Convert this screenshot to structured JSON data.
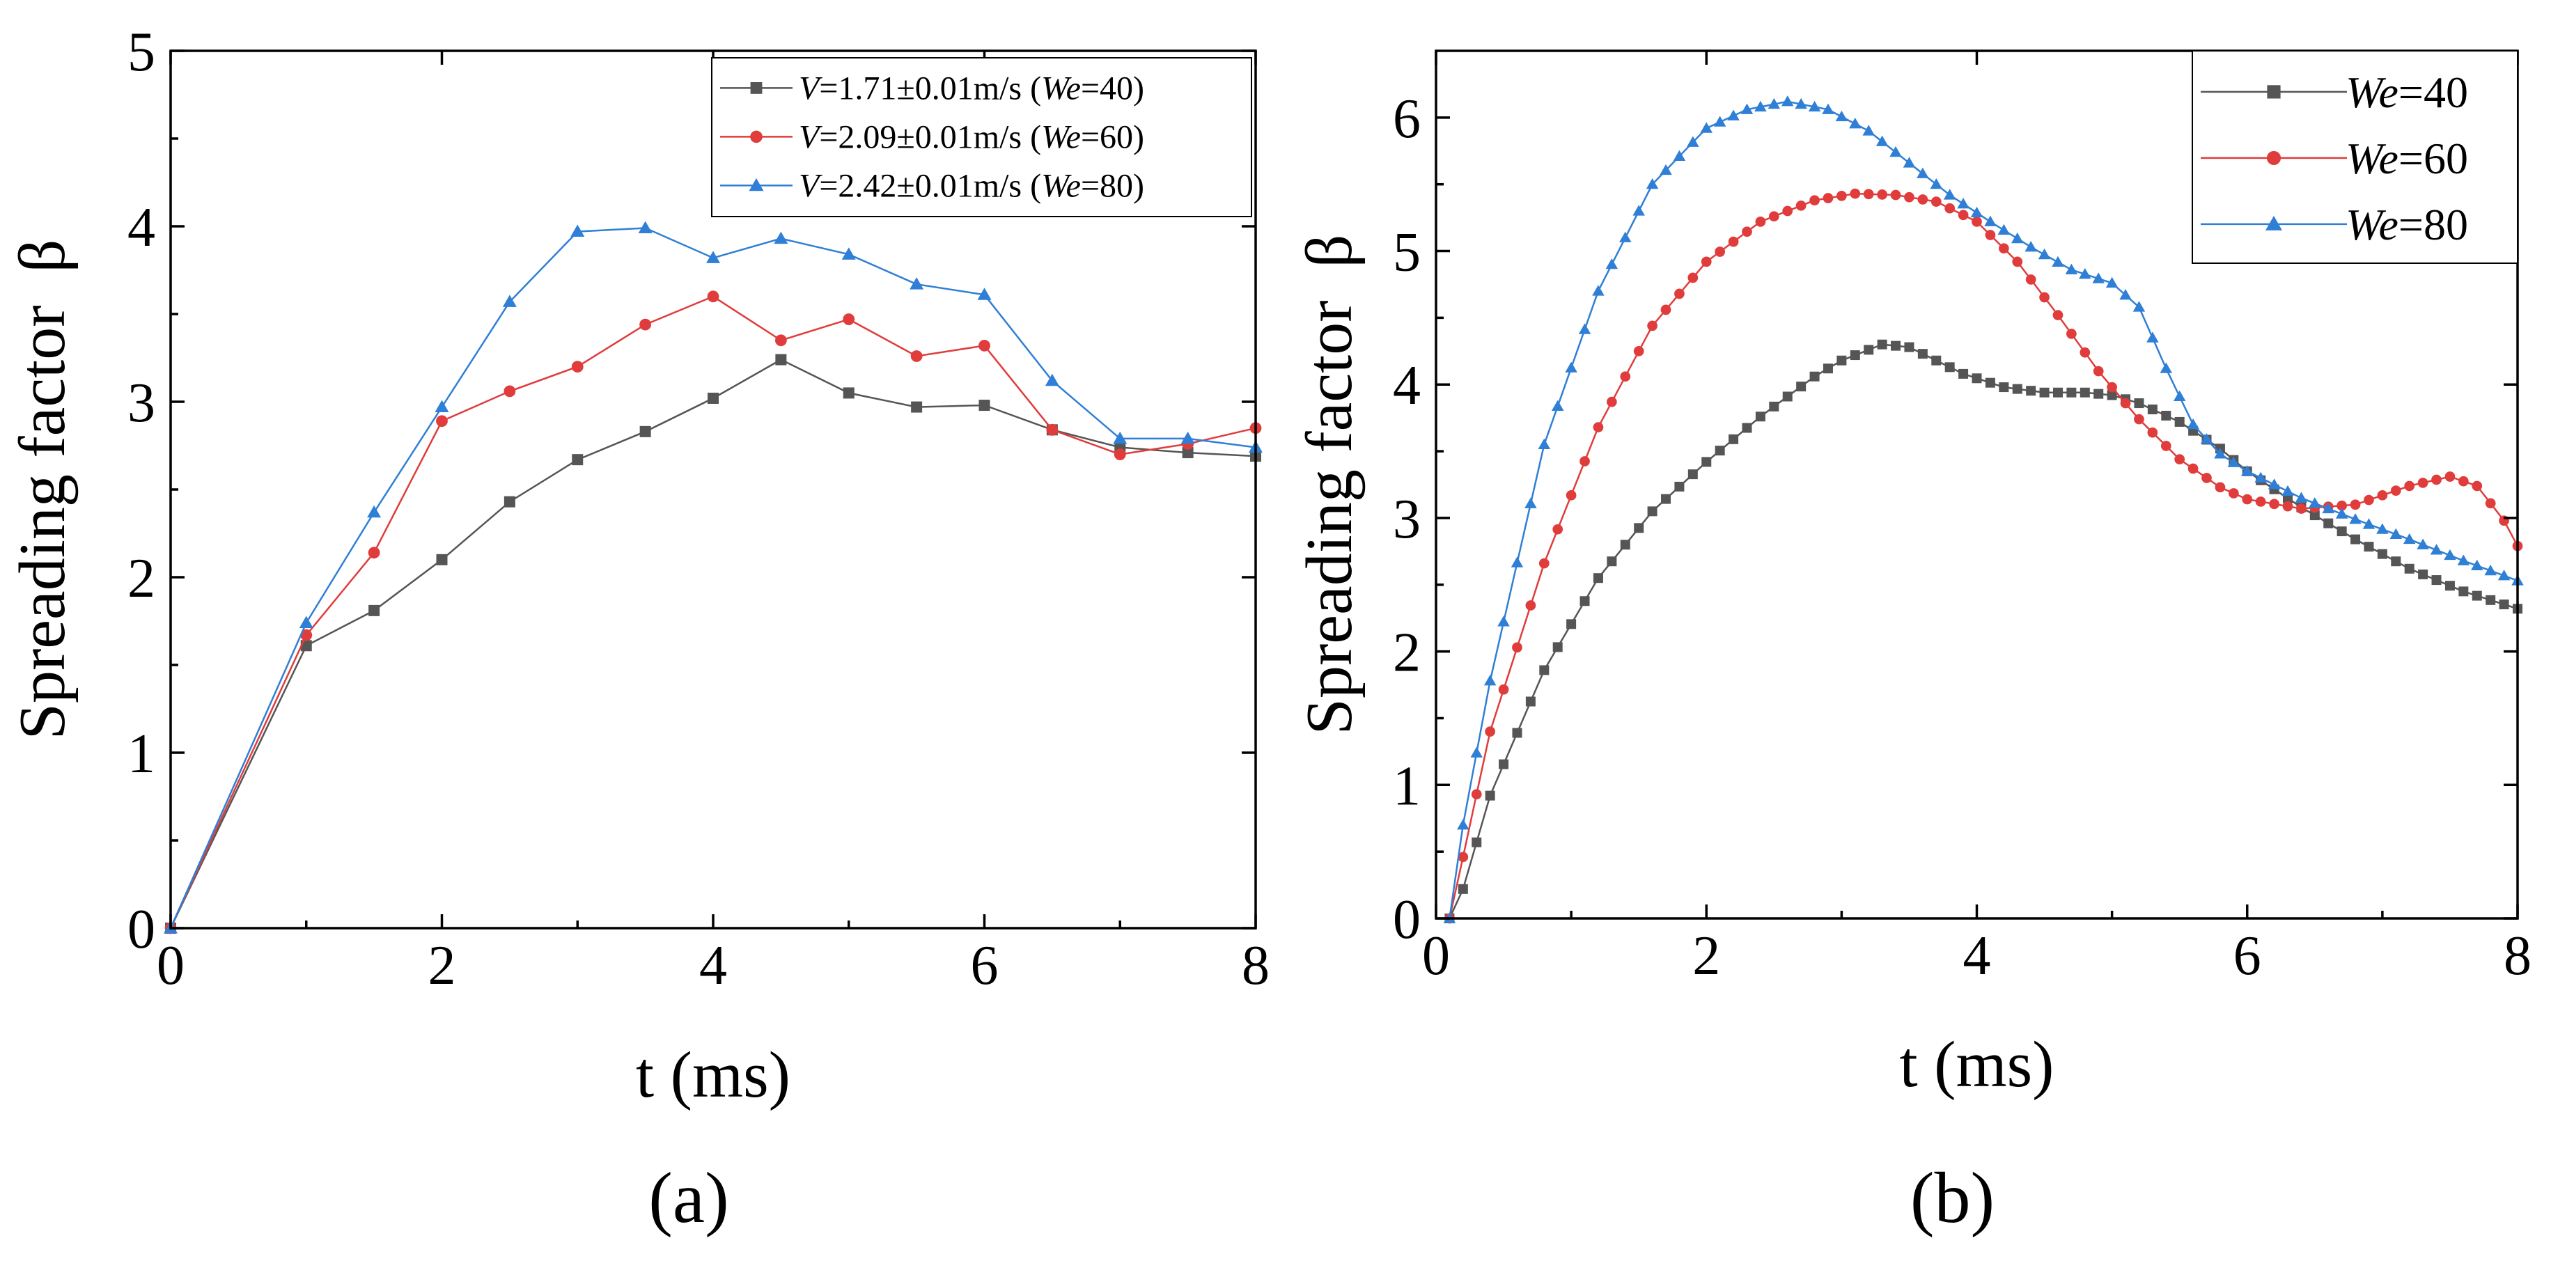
{
  "chart_data": [
    {
      "type": "line",
      "panel_label": "(a)",
      "xlabel": "t (ms)",
      "ylabel": "Spreading factor  β",
      "xlim": [
        0,
        8
      ],
      "ylim": [
        0,
        5
      ],
      "xticks": [
        "0",
        "2",
        "4",
        "6",
        "8"
      ],
      "yticks": [
        "0",
        "1",
        "2",
        "3",
        "4",
        "5"
      ],
      "legend_position": "top-right",
      "grid": false,
      "series": [
        {
          "name": "V=1.71±0.01m/s (We=40)",
          "legend_parts": [
            [
              "V",
              "i"
            ],
            [
              "=1.71±0.01m/s (",
              "n"
            ],
            [
              "We",
              "i"
            ],
            [
              "=40)",
              "n"
            ]
          ],
          "color": "#555555",
          "marker": "square",
          "x": [
            0,
            1,
            1.5,
            2,
            2.5,
            3,
            3.5,
            4,
            4.5,
            5,
            5.5,
            6,
            6.5,
            7,
            7.5,
            8
          ],
          "y": [
            0,
            1.61,
            1.81,
            2.1,
            2.43,
            2.67,
            2.83,
            3.02,
            3.24,
            3.05,
            2.97,
            2.98,
            2.84,
            2.74,
            2.71,
            2.69
          ]
        },
        {
          "name": "V=2.09±0.01m/s (We=60)",
          "legend_parts": [
            [
              "V",
              "i"
            ],
            [
              "=2.09±0.01m/s (",
              "n"
            ],
            [
              "We",
              "i"
            ],
            [
              "=60)",
              "n"
            ]
          ],
          "color": "#e03c3c",
          "marker": "circle",
          "x": [
            0,
            1,
            1.5,
            2,
            2.5,
            3,
            3.5,
            4,
            4.5,
            5,
            5.5,
            6,
            6.5,
            7,
            7.5,
            8
          ],
          "y": [
            0,
            1.67,
            2.14,
            2.89,
            3.06,
            3.2,
            3.44,
            3.6,
            3.35,
            3.47,
            3.26,
            3.32,
            2.84,
            2.7,
            2.76,
            2.85
          ]
        },
        {
          "name": "V=2.42±0.01m/s (We=80)",
          "legend_parts": [
            [
              "V",
              "i"
            ],
            [
              "=2.42±0.01m/s (",
              "n"
            ],
            [
              "We",
              "i"
            ],
            [
              "=80)",
              "n"
            ]
          ],
          "color": "#2f7fd6",
          "marker": "triangle",
          "x": [
            0,
            1,
            1.5,
            2,
            2.5,
            3,
            3.5,
            4,
            4.5,
            5,
            5.5,
            6,
            6.5,
            7,
            7.5,
            8
          ],
          "y": [
            0,
            1.74,
            2.37,
            2.97,
            3.57,
            3.97,
            3.99,
            3.82,
            3.93,
            3.84,
            3.67,
            3.61,
            3.12,
            2.79,
            2.79,
            2.74
          ]
        }
      ]
    },
    {
      "type": "line",
      "panel_label": "(b)",
      "xlabel": "t (ms)",
      "ylabel": "Spreading factor  β",
      "xlim": [
        0,
        8
      ],
      "ylim": [
        0,
        6.5
      ],
      "xticks": [
        "0",
        "2",
        "4",
        "6",
        "8"
      ],
      "yticks": [
        "0",
        "1",
        "2",
        "3",
        "4",
        "5",
        "6"
      ],
      "legend_position": "top-right",
      "grid": false,
      "sample_x": {
        "start": 0.1,
        "step": 0.1,
        "count": 80
      },
      "series": [
        {
          "name": "We=40",
          "legend_parts": [
            [
              "We",
              "i"
            ],
            [
              "=40",
              "n"
            ]
          ],
          "color": "#555555",
          "marker": "square",
          "knots_x": [
            0.1,
            0.2,
            0.4,
            0.8,
            1.2,
            1.6,
            2.0,
            2.4,
            2.8,
            3.0,
            3.3,
            3.5,
            3.7,
            3.9,
            4.2,
            4.5,
            4.8,
            5.0,
            5.2,
            5.5,
            5.8,
            6.0,
            6.4,
            6.8,
            7.2,
            7.6,
            8.0
          ],
          "knots_y": [
            0,
            0.22,
            0.92,
            1.86,
            2.55,
            3.05,
            3.42,
            3.76,
            4.06,
            4.18,
            4.3,
            4.28,
            4.18,
            4.08,
            3.98,
            3.94,
            3.94,
            3.92,
            3.86,
            3.72,
            3.52,
            3.35,
            3.08,
            2.84,
            2.62,
            2.45,
            2.32
          ]
        },
        {
          "name": "We=60",
          "legend_parts": [
            [
              "We",
              "i"
            ],
            [
              "=60",
              "n"
            ]
          ],
          "color": "#e03c3c",
          "marker": "circle",
          "knots_x": [
            0.1,
            0.2,
            0.4,
            0.8,
            1.2,
            1.6,
            2.0,
            2.4,
            2.8,
            3.1,
            3.4,
            3.7,
            4.0,
            4.3,
            4.6,
            4.9,
            5.2,
            5.5,
            5.8,
            6.0,
            6.4,
            6.8,
            7.2,
            7.5,
            7.7,
            7.9,
            8.0
          ],
          "knots_y": [
            0,
            0.46,
            1.4,
            2.66,
            3.68,
            4.44,
            4.92,
            5.22,
            5.38,
            5.43,
            5.42,
            5.37,
            5.22,
            4.92,
            4.52,
            4.1,
            3.74,
            3.44,
            3.23,
            3.14,
            3.07,
            3.1,
            3.24,
            3.31,
            3.24,
            2.98,
            2.79
          ]
        },
        {
          "name": "We=80",
          "legend_parts": [
            [
              "We",
              "i"
            ],
            [
              "=80",
              "n"
            ]
          ],
          "color": "#2f7fd6",
          "marker": "triangle",
          "knots_x": [
            0.1,
            0.2,
            0.4,
            0.8,
            1.2,
            1.6,
            2.0,
            2.3,
            2.6,
            2.9,
            3.2,
            3.5,
            3.8,
            4.1,
            4.4,
            4.7,
            5.0,
            5.2,
            5.4,
            5.6,
            5.8,
            6.0,
            6.4,
            6.8,
            7.2,
            7.6,
            8.0
          ],
          "knots_y": [
            0,
            0.7,
            1.78,
            3.55,
            4.7,
            5.5,
            5.92,
            6.06,
            6.12,
            6.06,
            5.9,
            5.66,
            5.42,
            5.22,
            5.03,
            4.86,
            4.76,
            4.58,
            4.12,
            3.7,
            3.48,
            3.35,
            3.15,
            2.99,
            2.84,
            2.68,
            2.53
          ]
        }
      ]
    }
  ]
}
